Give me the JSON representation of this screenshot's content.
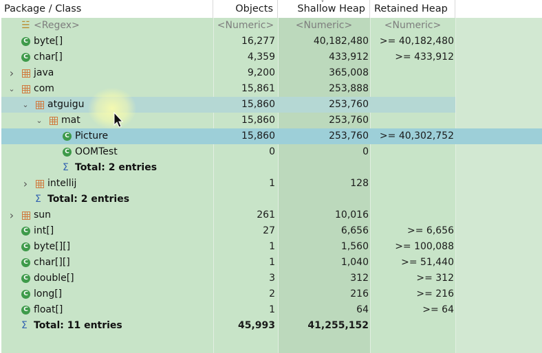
{
  "columns": {
    "package": "Package / Class",
    "objects": "Objects",
    "shallow": "Shallow Heap",
    "retained": "Retained Heap"
  },
  "rows": [
    {
      "type": "regex",
      "name": "<Regex>",
      "objects": "<Numeric>",
      "shallow": "<Numeric>",
      "retained": "<Numeric>",
      "depth": 0
    },
    {
      "type": "class",
      "name": "byte[]",
      "objects": "16,277",
      "shallow": "40,182,480",
      "retained": ">= 40,182,480",
      "depth": 0
    },
    {
      "type": "class",
      "name": "char[]",
      "objects": "4,359",
      "shallow": "433,912",
      "retained": ">= 433,912",
      "depth": 0
    },
    {
      "type": "package",
      "name": "java",
      "objects": "9,200",
      "shallow": "365,008",
      "retained": "",
      "depth": 0,
      "arrow": "collapsed"
    },
    {
      "type": "package",
      "name": "com",
      "objects": "15,861",
      "shallow": "253,888",
      "retained": "",
      "depth": 0,
      "arrow": "expanded"
    },
    {
      "type": "package",
      "name": "atguigu",
      "objects": "15,860",
      "shallow": "253,760",
      "retained": "",
      "depth": 1,
      "arrow": "expanded",
      "highlight": "light"
    },
    {
      "type": "package",
      "name": "mat",
      "objects": "15,860",
      "shallow": "253,760",
      "retained": "",
      "depth": 2,
      "arrow": "expanded"
    },
    {
      "type": "class",
      "name": "Picture",
      "objects": "15,860",
      "shallow": "253,760",
      "retained": ">= 40,302,752",
      "depth": 3,
      "highlight": "selected"
    },
    {
      "type": "class",
      "name": "OOMTest",
      "objects": "0",
      "shallow": "0",
      "retained": "",
      "depth": 3
    },
    {
      "type": "total",
      "name": "Total: 2 entries",
      "objects": "",
      "shallow": "",
      "retained": "",
      "depth": 3
    },
    {
      "type": "package",
      "name": "intellij",
      "objects": "1",
      "shallow": "128",
      "retained": "",
      "depth": 1,
      "arrow": "collapsed"
    },
    {
      "type": "total",
      "name": "Total: 2 entries",
      "objects": "",
      "shallow": "",
      "retained": "",
      "depth": 1
    },
    {
      "type": "package",
      "name": "sun",
      "objects": "261",
      "shallow": "10,016",
      "retained": "",
      "depth": 0,
      "arrow": "collapsed"
    },
    {
      "type": "class",
      "name": "int[]",
      "objects": "27",
      "shallow": "6,656",
      "retained": ">= 6,656",
      "depth": 0
    },
    {
      "type": "class",
      "name": "byte[][]",
      "objects": "1",
      "shallow": "1,560",
      "retained": ">= 100,088",
      "depth": 0
    },
    {
      "type": "class",
      "name": "char[][]",
      "objects": "1",
      "shallow": "1,040",
      "retained": ">= 51,440",
      "depth": 0
    },
    {
      "type": "class",
      "name": "double[]",
      "objects": "3",
      "shallow": "312",
      "retained": ">= 312",
      "depth": 0
    },
    {
      "type": "class",
      "name": "long[]",
      "objects": "2",
      "shallow": "216",
      "retained": ">= 216",
      "depth": 0
    },
    {
      "type": "class",
      "name": "float[]",
      "objects": "1",
      "shallow": "64",
      "retained": ">= 64",
      "depth": 0
    },
    {
      "type": "total",
      "name": "Total: 11 entries",
      "objects": "45,993",
      "shallow": "41,255,152",
      "retained": "",
      "depth": 0
    }
  ],
  "icons": {
    "class": "class-icon",
    "package": "package-icon",
    "total": "sum-icon",
    "regex": "regex-filter-icon"
  },
  "colors": {
    "row_bg": "#c8e4c8",
    "selected_row": "#9dcfd8",
    "highlighted_row": "#b5d8d4",
    "class_icon": "#3e9a4a",
    "package_icon": "#d0783c"
  }
}
